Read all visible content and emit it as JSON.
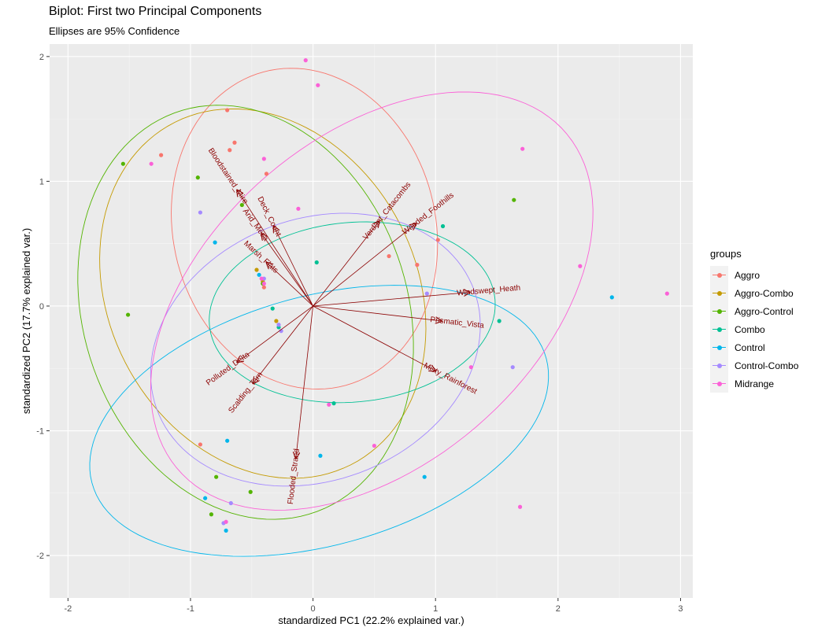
{
  "title": "Biplot: First two Principal Components",
  "subtitle": "Ellipses are 95% Confidence",
  "legend": {
    "title": "groups",
    "items": [
      {
        "label": "Aggro",
        "color": "#F8766D"
      },
      {
        "label": "Aggro-Combo",
        "color": "#C49A00"
      },
      {
        "label": "Aggro-Control",
        "color": "#53B400"
      },
      {
        "label": "Combo",
        "color": "#00C094"
      },
      {
        "label": "Control",
        "color": "#00B6EB"
      },
      {
        "label": "Control-Combo",
        "color": "#A58AFF"
      },
      {
        "label": "Midrange",
        "color": "#FB61D7"
      }
    ]
  },
  "chart_data": {
    "type": "scatter",
    "xlabel": "standardized PC1 (22.2% explained var.)",
    "ylabel": "standardized PC2 (17.7% explained var.)",
    "xlim": [
      -2.15,
      3.1
    ],
    "ylim": [
      -2.34,
      2.1
    ],
    "xticks": [
      -2,
      -1,
      0,
      1,
      2,
      3
    ],
    "yticks": [
      -2,
      -1,
      0,
      1,
      2
    ],
    "grid": true,
    "legend_position": "right",
    "arrow_color": "#8B0000",
    "points": [
      {
        "group": "Aggro",
        "x": -0.7,
        "y": 1.57
      },
      {
        "group": "Aggro",
        "x": -0.64,
        "y": 1.31
      },
      {
        "group": "Aggro",
        "x": -0.68,
        "y": 1.25
      },
      {
        "group": "Aggro",
        "x": -1.24,
        "y": 1.21
      },
      {
        "group": "Aggro",
        "x": -0.38,
        "y": 1.06
      },
      {
        "group": "Aggro",
        "x": -0.4,
        "y": 0.15
      },
      {
        "group": "Aggro",
        "x": 0.62,
        "y": 0.4
      },
      {
        "group": "Aggro",
        "x": 0.85,
        "y": 0.33
      },
      {
        "group": "Aggro",
        "x": 1.02,
        "y": 0.53
      },
      {
        "group": "Aggro",
        "x": -0.92,
        "y": -1.11
      },
      {
        "group": "Aggro-Combo",
        "x": -0.46,
        "y": 0.29
      },
      {
        "group": "Aggro-Combo",
        "x": -0.41,
        "y": 0.2
      },
      {
        "group": "Aggro-Combo",
        "x": -0.3,
        "y": -0.12
      },
      {
        "group": "Aggro-Control",
        "x": -1.55,
        "y": 1.14
      },
      {
        "group": "Aggro-Control",
        "x": -0.94,
        "y": 1.03
      },
      {
        "group": "Aggro-Control",
        "x": -0.58,
        "y": 0.81
      },
      {
        "group": "Aggro-Control",
        "x": -0.41,
        "y": 0.18
      },
      {
        "group": "Aggro-Control",
        "x": -1.51,
        "y": -0.07
      },
      {
        "group": "Aggro-Control",
        "x": 1.64,
        "y": 0.85
      },
      {
        "group": "Aggro-Control",
        "x": -0.79,
        "y": -1.37
      },
      {
        "group": "Aggro-Control",
        "x": -0.51,
        "y": -1.49
      },
      {
        "group": "Aggro-Control",
        "x": -0.83,
        "y": -1.67
      },
      {
        "group": "Combo",
        "x": 0.03,
        "y": 0.35
      },
      {
        "group": "Combo",
        "x": 1.06,
        "y": 0.64
      },
      {
        "group": "Combo",
        "x": -0.33,
        "y": -0.02
      },
      {
        "group": "Combo",
        "x": -0.28,
        "y": -0.17
      },
      {
        "group": "Combo",
        "x": 0.17,
        "y": -0.78
      },
      {
        "group": "Combo",
        "x": 1.52,
        "y": -0.12
      },
      {
        "group": "Control",
        "x": -0.8,
        "y": 0.51
      },
      {
        "group": "Control",
        "x": -0.44,
        "y": 0.25
      },
      {
        "group": "Control",
        "x": 2.44,
        "y": 0.07
      },
      {
        "group": "Control",
        "x": -0.7,
        "y": -1.08
      },
      {
        "group": "Control",
        "x": 0.06,
        "y": -1.2
      },
      {
        "group": "Control",
        "x": 0.91,
        "y": -1.37
      },
      {
        "group": "Control",
        "x": -0.88,
        "y": -1.54
      },
      {
        "group": "Control",
        "x": -0.71,
        "y": -1.8
      },
      {
        "group": "Control-Combo",
        "x": -0.92,
        "y": 0.75
      },
      {
        "group": "Control-Combo",
        "x": -0.4,
        "y": 0.22
      },
      {
        "group": "Control-Combo",
        "x": -0.28,
        "y": -0.15
      },
      {
        "group": "Control-Combo",
        "x": -0.26,
        "y": -0.2
      },
      {
        "group": "Control-Combo",
        "x": 0.93,
        "y": 0.1
      },
      {
        "group": "Control-Combo",
        "x": 1.63,
        "y": -0.49
      },
      {
        "group": "Control-Combo",
        "x": -0.67,
        "y": -1.58
      },
      {
        "group": "Control-Combo",
        "x": -0.73,
        "y": -1.74
      },
      {
        "group": "Midrange",
        "x": -0.06,
        "y": 1.97
      },
      {
        "group": "Midrange",
        "x": 0.04,
        "y": 1.77
      },
      {
        "group": "Midrange",
        "x": -1.32,
        "y": 1.14
      },
      {
        "group": "Midrange",
        "x": -0.4,
        "y": 1.18
      },
      {
        "group": "Midrange",
        "x": -0.12,
        "y": 0.78
      },
      {
        "group": "Midrange",
        "x": -0.42,
        "y": 0.22
      },
      {
        "group": "Midrange",
        "x": -0.4,
        "y": 0.18
      },
      {
        "group": "Midrange",
        "x": 1.71,
        "y": 1.26
      },
      {
        "group": "Midrange",
        "x": 2.18,
        "y": 0.32
      },
      {
        "group": "Midrange",
        "x": 2.89,
        "y": 0.1
      },
      {
        "group": "Midrange",
        "x": 1.29,
        "y": -0.49
      },
      {
        "group": "Midrange",
        "x": 0.13,
        "y": -0.79
      },
      {
        "group": "Midrange",
        "x": 0.5,
        "y": -1.12
      },
      {
        "group": "Midrange",
        "x": 1.69,
        "y": -1.61
      },
      {
        "group": "Midrange",
        "x": -0.71,
        "y": -1.73
      }
    ],
    "loadings": [
      {
        "name": "Bloodstained_Mire",
        "x": -0.62,
        "y": 0.93
      },
      {
        "name": "Deck_Count",
        "x": -0.32,
        "y": 0.64
      },
      {
        "name": "Arid_Mesa",
        "x": -0.42,
        "y": 0.58
      },
      {
        "name": "Marsh_Flats",
        "x": -0.38,
        "y": 0.35
      },
      {
        "name": "Verdant_Catacombs",
        "x": 0.54,
        "y": 0.68
      },
      {
        "name": "Wooded_Foothills",
        "x": 0.84,
        "y": 0.66
      },
      {
        "name": "Windswept_Heath",
        "x": 1.28,
        "y": 0.11
      },
      {
        "name": "Prismatic_Vista",
        "x": 1.05,
        "y": -0.12
      },
      {
        "name": "Misty_Rainforest",
        "x": 1.0,
        "y": -0.52
      },
      {
        "name": "Polluted_Delta",
        "x": -0.62,
        "y": -0.45
      },
      {
        "name": "Scalding_Tarn",
        "x": -0.49,
        "y": -0.62
      },
      {
        "name": "Flooded_Strand",
        "x": -0.14,
        "y": -1.22
      }
    ],
    "ellipses": [
      {
        "group": "Aggro",
        "cx": -0.07,
        "cy": 0.62,
        "rx": 1.07,
        "ry": 1.3,
        "angle": 15
      },
      {
        "group": "Aggro-Combo",
        "cx": -0.41,
        "cy": 0.1,
        "rx": 1.25,
        "ry": 1.55,
        "angle": 30
      },
      {
        "group": "Aggro-Control",
        "cx": -0.55,
        "cy": -0.05,
        "rx": 1.32,
        "ry": 1.7,
        "angle": 20
      },
      {
        "group": "Combo",
        "cx": 0.32,
        "cy": -0.05,
        "rx": 1.17,
        "ry": 0.72,
        "angle": 5
      },
      {
        "group": "Control",
        "cx": 0.05,
        "cy": -0.92,
        "rx": 1.92,
        "ry": 1.0,
        "angle": 15
      },
      {
        "group": "Control-Combo",
        "cx": 0.02,
        "cy": -0.35,
        "rx": 1.38,
        "ry": 1.05,
        "angle": 20
      },
      {
        "group": "Midrange",
        "cx": 0.48,
        "cy": 0.04,
        "rx": 2.08,
        "ry": 1.32,
        "angle": 40
      }
    ]
  }
}
